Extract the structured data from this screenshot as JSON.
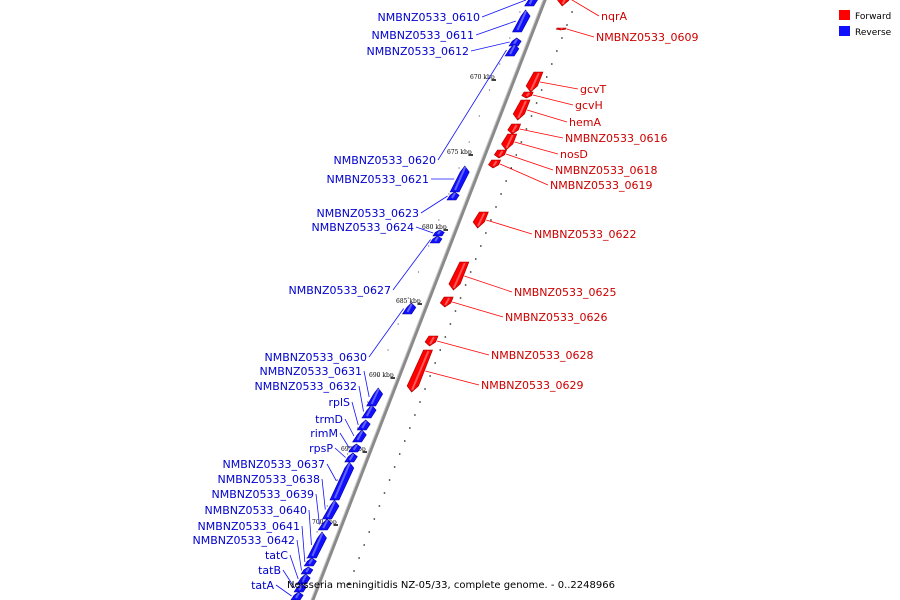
{
  "colors": {
    "forward": "#ff0000",
    "reverse": "#1010ff",
    "forward_text": "#cc0000",
    "reverse_text": "#0000cc",
    "backbone": "#8a8a8a"
  },
  "legend": [
    {
      "label": "Forward",
      "key": "forward"
    },
    {
      "label": "Reverse",
      "key": "reverse"
    }
  ],
  "caption": "Neisseria meningitidis NZ-05/33, complete genome. - 0..2248966",
  "kbp_ticks": [
    "670 kbp",
    "675 kbp",
    "680 kbp",
    "685 kbp",
    "690 kbp",
    "695 kbp",
    "700 kbp"
  ],
  "forward_genes": [
    {
      "name": "nqrA"
    },
    {
      "name": "NMBNZ0533_0609"
    },
    {
      "name": "gcvT"
    },
    {
      "name": "gcvH"
    },
    {
      "name": "hemA"
    },
    {
      "name": "NMBNZ0533_0616"
    },
    {
      "name": "nosD"
    },
    {
      "name": "NMBNZ0533_0618"
    },
    {
      "name": "NMBNZ0533_0619"
    },
    {
      "name": "NMBNZ0533_0622"
    },
    {
      "name": "NMBNZ0533_0625"
    },
    {
      "name": "NMBNZ0533_0626"
    },
    {
      "name": "NMBNZ0533_0628"
    },
    {
      "name": "NMBNZ0533_0629"
    }
  ],
  "reverse_genes": [
    {
      "name": "NMBNZ0533_0610"
    },
    {
      "name": "NMBNZ0533_0611"
    },
    {
      "name": "NMBNZ0533_0612"
    },
    {
      "name": "NMBNZ0533_0620"
    },
    {
      "name": "NMBNZ0533_0621"
    },
    {
      "name": "NMBNZ0533_0623"
    },
    {
      "name": "NMBNZ0533_0624"
    },
    {
      "name": "NMBNZ0533_0627"
    },
    {
      "name": "NMBNZ0533_0630"
    },
    {
      "name": "NMBNZ0533_0631"
    },
    {
      "name": "NMBNZ0533_0632"
    },
    {
      "name": "rplS"
    },
    {
      "name": "trmD"
    },
    {
      "name": "rimM"
    },
    {
      "name": "rpsP"
    },
    {
      "name": "NMBNZ0533_0637"
    },
    {
      "name": "NMBNZ0533_0638"
    },
    {
      "name": "NMBNZ0533_0639"
    },
    {
      "name": "NMBNZ0533_0640"
    },
    {
      "name": "NMBNZ0533_0641"
    },
    {
      "name": "NMBNZ0533_0642"
    },
    {
      "name": "tatC"
    },
    {
      "name": "tatB"
    },
    {
      "name": "tatA"
    }
  ]
}
